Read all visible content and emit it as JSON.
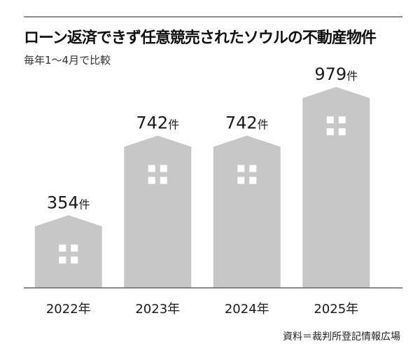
{
  "header": {
    "title": "ローン返済できず任意競売されたソウルの不動産物件",
    "subtitle": "毎年1～4月で比較"
  },
  "footer": {
    "source": "資料＝裁判所登記情報広場"
  },
  "colors": {
    "bar": "#c7c7c7",
    "window": "#ffffff",
    "baseline": "#666666",
    "rule": "#8c8c8c",
    "text": "#1a1a1a"
  },
  "chart_data": {
    "type": "bar",
    "title": "ローン返済できず任意競売されたソウルの不動産物件",
    "subtitle": "毎年1～4月で比較",
    "categories": [
      "2022年",
      "2023年",
      "2024年",
      "2025年"
    ],
    "values": [
      354,
      742,
      742,
      979
    ],
    "value_unit": "件",
    "value_labels": [
      "354件",
      "742件",
      "742件",
      "979件"
    ],
    "ylim": [
      0,
      1000
    ],
    "xlabel": "",
    "ylabel": "",
    "grid": false,
    "legend": "none",
    "bar_style": "house"
  }
}
